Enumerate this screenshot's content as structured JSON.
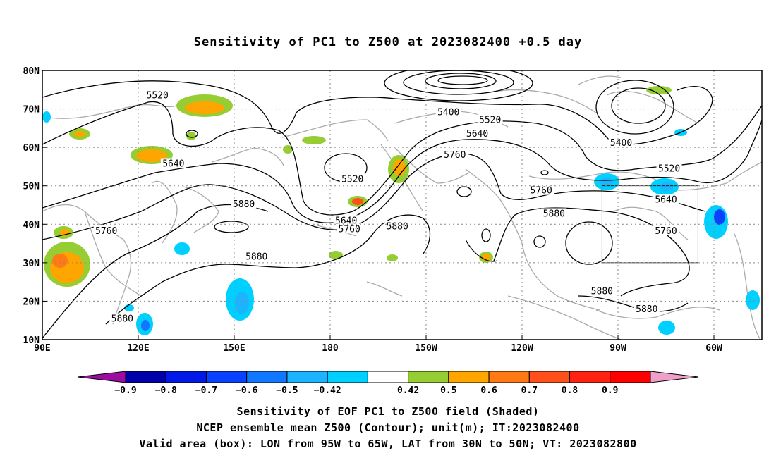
{
  "title": "Sensitivity of PC1 to Z500 at 2023082400 +0.5 day",
  "lat_labels": [
    "80N",
    "70N",
    "60N",
    "50N",
    "40N",
    "30N",
    "20N",
    "10N"
  ],
  "lon_labels": [
    "90E",
    "120E",
    "150E",
    "180",
    "150W",
    "120W",
    "90W",
    "60W"
  ],
  "contours": [
    {
      "label": "5520",
      "lon": 126,
      "lat": 73.7
    },
    {
      "label": "5400",
      "lon": -143,
      "lat": 69.3
    },
    {
      "label": "5520",
      "lon": -130,
      "lat": 67.3
    },
    {
      "label": "5640",
      "lon": -134,
      "lat": 63.7
    },
    {
      "label": "5760",
      "lon": -141,
      "lat": 58.2
    },
    {
      "label": "5400",
      "lon": -89,
      "lat": 61.3
    },
    {
      "label": "5520",
      "lon": -74,
      "lat": 54.6
    },
    {
      "label": "5640",
      "lon": 131,
      "lat": 55.9
    },
    {
      "label": "5520",
      "lon": -173,
      "lat": 51.9
    },
    {
      "label": "5760",
      "lon": -114,
      "lat": 48.9
    },
    {
      "label": "5640",
      "lon": -75,
      "lat": 46.6
    },
    {
      "label": "5880",
      "lon": 153,
      "lat": 45.4
    },
    {
      "label": "5640",
      "lon": -175,
      "lat": 41.1
    },
    {
      "label": "5760",
      "lon": -174,
      "lat": 38.9
    },
    {
      "label": "5880",
      "lon": -110,
      "lat": 42.9
    },
    {
      "label": "5880",
      "lon": -159,
      "lat": 39.6
    },
    {
      "label": "5760",
      "lon": 110,
      "lat": 38.4
    },
    {
      "label": "5760",
      "lon": -75,
      "lat": 38.4
    },
    {
      "label": "5880",
      "lon": 157,
      "lat": 31.7
    },
    {
      "label": "5880",
      "lon": -95,
      "lat": 22.7
    },
    {
      "label": "5880",
      "lon": -81,
      "lat": 18.1
    },
    {
      "label": "5880",
      "lon": 115,
      "lat": 15.6
    }
  ],
  "valid_box": {
    "lon_min": -95,
    "lon_max": -65,
    "lat_min": 30,
    "lat_max": 50
  },
  "colorbar": {
    "colors": [
      "#9d0ca0",
      "#0000a9",
      "#0019e6",
      "#0a41ff",
      "#1277ff",
      "#1cb3ff",
      "#00d0ff",
      "#ffffff",
      "#96cd32",
      "#ffa500",
      "#ff7a14",
      "#ff501c",
      "#ff2210",
      "#ff0000",
      "#f0a0c8"
    ],
    "labels": [
      "-0.9",
      "-0.8",
      "-0.7",
      "-0.6",
      "-0.5",
      "-0.42",
      "0.42",
      "0.5",
      "0.6",
      "0.7",
      "0.8",
      "0.9"
    ]
  },
  "caption1": "Sensitivity of EOF PC1 to Z500 field (Shaded)",
  "caption2": "NCEP ensemble mean Z500 (Contour); unit(m); IT:2023082400",
  "caption3": "Valid area (box): LON from 95W to 65W, LAT from 30N to 50N; VT: 2023082800"
}
